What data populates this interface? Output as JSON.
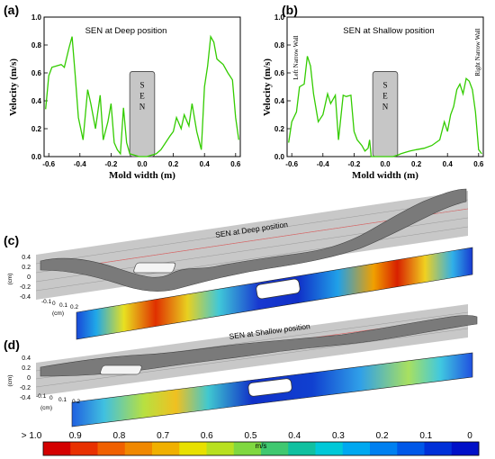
{
  "colorbar": {
    "labels": [
      "> 1.0",
      "0.9",
      "0.8",
      "0.7",
      "0.6",
      "0.5",
      "0.4",
      "0.3",
      "0.2",
      "0.1",
      "0"
    ],
    "unit": "m/s",
    "colors": [
      "#d40000",
      "#e83000",
      "#f06000",
      "#f08800",
      "#f0b000",
      "#e8e000",
      "#b8e020",
      "#80d840",
      "#40c870",
      "#10c0a0",
      "#00c8d8",
      "#00a8f0",
      "#0080f0",
      "#0058e8",
      "#0030d8",
      "#0010c8"
    ]
  },
  "chart_data": [
    {
      "type": "line",
      "panel": "(a)",
      "title": "SEN at Deep position",
      "xlabel": "Mold width (m)",
      "ylabel": "Velocity (m/s)",
      "xlim": [
        -0.63,
        0.63
      ],
      "ylim": [
        0,
        1.0
      ],
      "xticks": [
        "-0.6",
        "-0.4",
        "-0.2",
        "0.0",
        "0.2",
        "0.4",
        "0.6"
      ],
      "yticks": [
        "0.0",
        "0.2",
        "0.4",
        "0.6",
        "0.8",
        "1.0"
      ],
      "sen_label": "SEN",
      "sen_range": [
        -0.08,
        0.08
      ],
      "sen_top": 0.61,
      "x": [
        -0.62,
        -0.6,
        -0.58,
        -0.55,
        -0.52,
        -0.5,
        -0.47,
        -0.45,
        -0.43,
        -0.41,
        -0.38,
        -0.35,
        -0.33,
        -0.3,
        -0.27,
        -0.25,
        -0.22,
        -0.2,
        -0.18,
        -0.16,
        -0.14,
        -0.12,
        -0.1,
        -0.08,
        -0.05,
        -0.02,
        0.0,
        0.03,
        0.06,
        0.09,
        0.12,
        0.15,
        0.18,
        0.2,
        0.22,
        0.25,
        0.27,
        0.3,
        0.32,
        0.35,
        0.38,
        0.4,
        0.42,
        0.44,
        0.46,
        0.48,
        0.5,
        0.52,
        0.55,
        0.58,
        0.6,
        0.62
      ],
      "y": [
        0.34,
        0.58,
        0.64,
        0.65,
        0.66,
        0.64,
        0.78,
        0.86,
        0.58,
        0.28,
        0.12,
        0.48,
        0.38,
        0.2,
        0.44,
        0.12,
        0.25,
        0.38,
        0.1,
        0.05,
        0.02,
        0.35,
        0.1,
        0.02,
        0.01,
        0.0,
        0.0,
        0.0,
        0.01,
        0.02,
        0.05,
        0.1,
        0.15,
        0.18,
        0.28,
        0.2,
        0.3,
        0.22,
        0.38,
        0.18,
        0.05,
        0.5,
        0.65,
        0.86,
        0.82,
        0.7,
        0.68,
        0.66,
        0.6,
        0.55,
        0.28,
        0.12
      ]
    },
    {
      "type": "line",
      "panel": "(b)",
      "title": "SEN at Shallow position",
      "xlabel": "Mold width (m)",
      "ylabel": "Velocity (m/s)",
      "xlim": [
        -0.63,
        0.63
      ],
      "ylim": [
        0,
        1.0
      ],
      "xticks": [
        "-0.6",
        "-0.4",
        "-0.2",
        "0.0",
        "0.2",
        "0.4",
        "0.6"
      ],
      "yticks": [
        "0.0",
        "0.2",
        "0.4",
        "0.6",
        "0.8",
        "1.0"
      ],
      "sen_label": "SEN",
      "sen_range": [
        -0.08,
        0.08
      ],
      "sen_top": 0.61,
      "annotations": [
        "Left Narrow Wall",
        "Right Narrow Wall"
      ],
      "x": [
        -0.62,
        -0.6,
        -0.57,
        -0.55,
        -0.52,
        -0.5,
        -0.48,
        -0.46,
        -0.43,
        -0.4,
        -0.37,
        -0.35,
        -0.32,
        -0.3,
        -0.27,
        -0.25,
        -0.22,
        -0.2,
        -0.18,
        -0.15,
        -0.13,
        -0.11,
        -0.1,
        -0.09,
        0.05,
        0.08,
        0.1,
        0.13,
        0.16,
        0.2,
        0.25,
        0.3,
        0.35,
        0.38,
        0.4,
        0.42,
        0.44,
        0.46,
        0.48,
        0.5,
        0.52,
        0.54,
        0.56,
        0.58,
        0.6,
        0.62
      ],
      "y": [
        0.1,
        0.25,
        0.32,
        0.5,
        0.52,
        0.72,
        0.65,
        0.45,
        0.25,
        0.3,
        0.45,
        0.38,
        0.44,
        0.12,
        0.44,
        0.43,
        0.44,
        0.18,
        0.12,
        0.08,
        0.04,
        0.06,
        0.12,
        0.0,
        0.0,
        0.01,
        0.02,
        0.03,
        0.04,
        0.05,
        0.06,
        0.08,
        0.12,
        0.25,
        0.18,
        0.3,
        0.36,
        0.48,
        0.52,
        0.45,
        0.56,
        0.54,
        0.48,
        0.32,
        0.05,
        0.02
      ]
    }
  ],
  "panel_c": {
    "label": "(c)",
    "title": "SEN at Deep position",
    "zticks": [
      "0.4",
      "0.2",
      "0",
      "-0.2",
      "-0.4"
    ],
    "zunit": "(cm)",
    "yticks": [
      "-0.1",
      "0",
      "0.1",
      "0.2"
    ],
    "yunit": "(cm)"
  },
  "panel_d": {
    "label": "(d)",
    "title": "SEN at Shallow position",
    "zticks": [
      "0.4",
      "0.2",
      "0",
      "-0.2",
      "-0.4"
    ],
    "zunit": "(cm)",
    "yticks": [
      "-0.1",
      "0",
      "0.1",
      "0.2"
    ],
    "yunit": "(cm)"
  }
}
